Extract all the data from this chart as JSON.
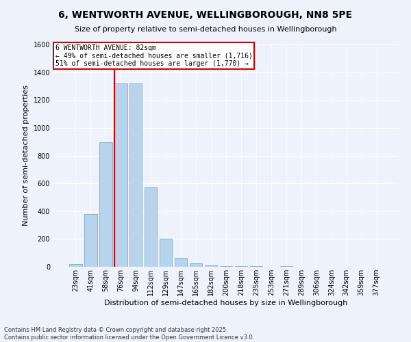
{
  "title": "6, WENTWORTH AVENUE, WELLINGBOROUGH, NN8 5PE",
  "subtitle": "Size of property relative to semi-detached houses in Wellingborough",
  "xlabel": "Distribution of semi-detached houses by size in Wellingborough",
  "ylabel": "Number of semi-detached properties",
  "categories": [
    "23sqm",
    "41sqm",
    "58sqm",
    "76sqm",
    "94sqm",
    "112sqm",
    "129sqm",
    "147sqm",
    "165sqm",
    "182sqm",
    "200sqm",
    "218sqm",
    "235sqm",
    "253sqm",
    "271sqm",
    "289sqm",
    "306sqm",
    "324sqm",
    "342sqm",
    "359sqm",
    "377sqm"
  ],
  "values": [
    20,
    380,
    895,
    1320,
    1320,
    570,
    200,
    65,
    27,
    10,
    5,
    5,
    5,
    0,
    7,
    0,
    0,
    0,
    0,
    0,
    0
  ],
  "bar_color": "#b8d4ec",
  "bar_edge_color": "#7aaad0",
  "property_line_color": "#cc0000",
  "property_line_bar_index": 3,
  "annotation_text": "6 WENTWORTH AVENUE: 82sqm\n← 49% of semi-detached houses are smaller (1,716)\n51% of semi-detached houses are larger (1,770) →",
  "annotation_box_edgecolor": "#cc0000",
  "background_color": "#eef2fa",
  "grid_color": "#ffffff",
  "footnote1": "Contains HM Land Registry data © Crown copyright and database right 2025.",
  "footnote2": "Contains public sector information licensed under the Open Government Licence v3.0.",
  "ylim": [
    0,
    1600
  ],
  "yticks": [
    0,
    200,
    400,
    600,
    800,
    1000,
    1200,
    1400,
    1600
  ],
  "title_fontsize": 10,
  "subtitle_fontsize": 8,
  "ylabel_fontsize": 8,
  "xlabel_fontsize": 8,
  "tick_fontsize": 7,
  "footnote_fontsize": 6
}
